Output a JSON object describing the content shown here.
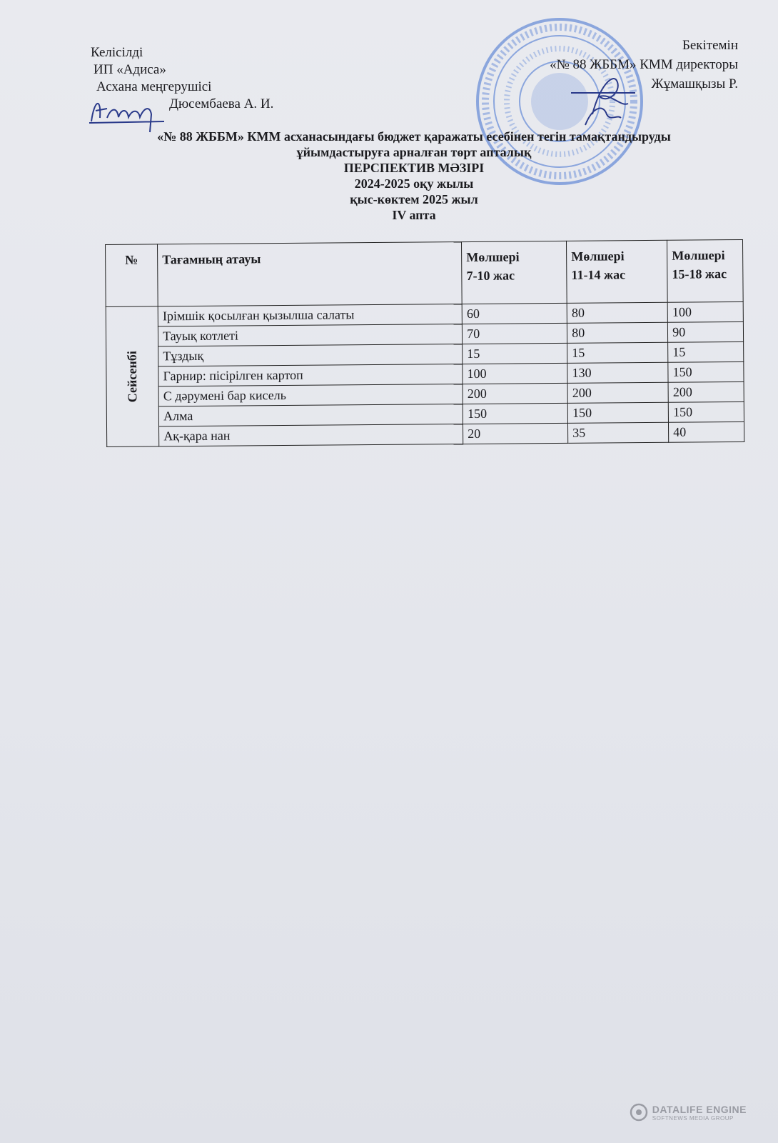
{
  "approval_left": {
    "agreed": "Келісілді",
    "org": "ИП «Адиса»",
    "position": "Асхана меңгерушісі",
    "name": "Дюсембаева А. И."
  },
  "approval_right": {
    "approved": "Бекітемін",
    "position": "«№ 88 ЖББМ»  КММ директоры",
    "name": "Жұмашқызы Р."
  },
  "stamp_color": "#3f6fd0",
  "titles": {
    "line1": "«№ 88 ЖББМ» КММ асханасындағы бюджет қаражаты есебінен тегін тамақтандыруды",
    "line2": "ұйымдастыруға арналған төрт апталық",
    "line3": "ПЕРСПЕКТИВ МӘЗІРІ",
    "line4": "2024-2025 оқу жылы",
    "line5": "қыс-көктем 2025 жыл",
    "line6": "IV апта"
  },
  "table": {
    "headers": {
      "num": "№",
      "name": "Тағамның атауы",
      "c1_top": "Мөлшері",
      "c1_bottom": "7-10 жас",
      "c2_top": "Мөлшері",
      "c2_bottom": "11-14 жас",
      "c3_top": "Мөлшері",
      "c3_bottom": "15-18 жас"
    },
    "day": "Сейсенбі",
    "rows": [
      {
        "name": "Ірімшік қосылған қызылша салаты",
        "a": "60",
        "b": "80",
        "c": "100"
      },
      {
        "name": "Тауық котлеті",
        "a": "70",
        "b": "80",
        "c": "90"
      },
      {
        "name": "Тұздық",
        "a": "15",
        "b": "15",
        "c": "15"
      },
      {
        "name": "Гарнир: пісірілген картоп",
        "a": "100",
        "b": "130",
        "c": "150"
      },
      {
        "name": "С дәрумені бар кисель",
        "a": "200",
        "b": "200",
        "c": "200"
      },
      {
        "name": "Алма",
        "a": "150",
        "b": "150",
        "c": "150"
      },
      {
        "name": "Ақ-қара  нан",
        "a": "20",
        "b": "35",
        "c": "40"
      }
    ]
  },
  "watermark": {
    "line1": "DATALIFE ENGINE",
    "line2": "SOFTNEWS MEDIA GROUP"
  }
}
